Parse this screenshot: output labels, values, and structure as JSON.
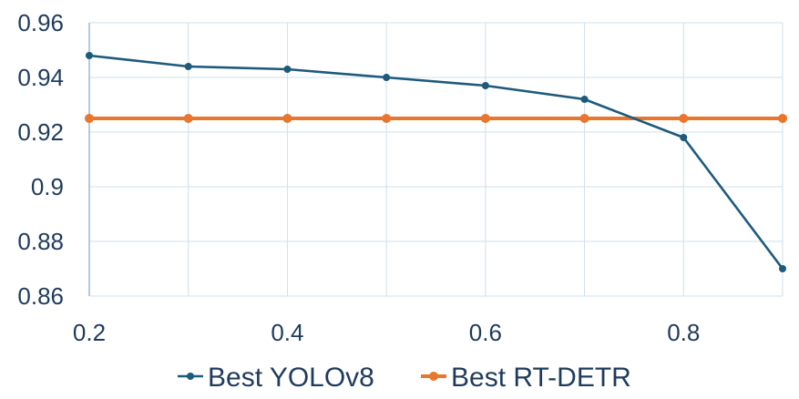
{
  "chart_data": {
    "type": "line",
    "title": "",
    "xlabel": "",
    "ylabel": "",
    "x": [
      0.2,
      0.3,
      0.4,
      0.5,
      0.6,
      0.7,
      0.8,
      0.9
    ],
    "xlim": [
      0.2,
      0.9
    ],
    "ylim": [
      0.86,
      0.96
    ],
    "x_ticks": [
      "0.2",
      "0.4",
      "0.6",
      "0.8"
    ],
    "x_tick_values": [
      0.2,
      0.4,
      0.6,
      0.8
    ],
    "y_ticks": [
      "0.96",
      "0.94",
      "0.92",
      "0.9",
      "0.88",
      "0.86"
    ],
    "y_tick_values": [
      0.96,
      0.94,
      0.92,
      0.9,
      0.88,
      0.86
    ],
    "grid": true,
    "legend_position": "bottom",
    "series": [
      {
        "name": "Best YOLOv8",
        "color": "#1d5a7c",
        "values": [
          0.948,
          0.944,
          0.943,
          0.94,
          0.937,
          0.932,
          0.918,
          0.87
        ]
      },
      {
        "name": "Best RT-DETR",
        "color": "#e8762d",
        "values": [
          0.925,
          0.925,
          0.925,
          0.925,
          0.925,
          0.925,
          0.925,
          0.925
        ]
      }
    ]
  }
}
